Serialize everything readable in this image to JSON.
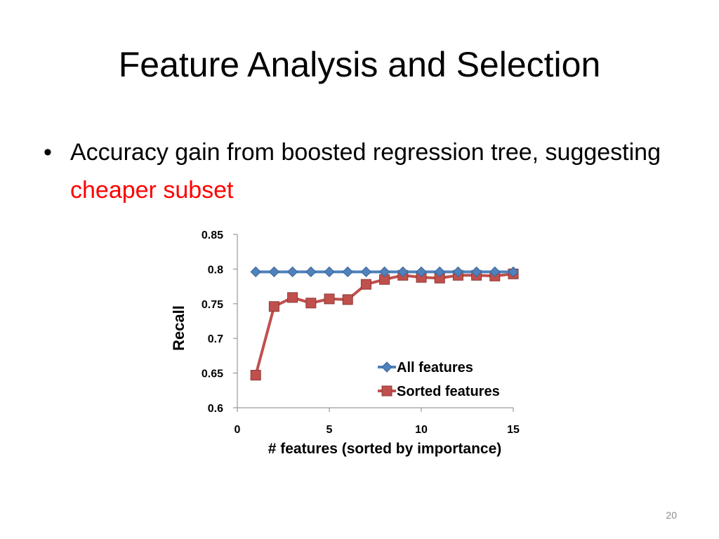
{
  "slide": {
    "title": "Feature Analysis and Selection",
    "bullet_marker": "•",
    "bullet_text": "Accuracy gain from boosted regression tree, suggesting ",
    "bullet_highlight": "cheaper subset",
    "highlight_color": "#ff0000",
    "page_number": "20"
  },
  "chart_data": {
    "type": "line",
    "xlabel": "# features (sorted by importance)",
    "ylabel": "Recall",
    "xlim": [
      0,
      15
    ],
    "ylim": [
      0.6,
      0.85
    ],
    "xticks": [
      0,
      5,
      10,
      15
    ],
    "yticks": [
      0.6,
      0.65,
      0.7,
      0.75,
      0.8,
      0.85
    ],
    "ytick_labels": [
      "0.6",
      "0.65",
      "0.7",
      "0.75",
      "0.8",
      "0.85"
    ],
    "grid": false,
    "legend_position": "right-lower",
    "series": [
      {
        "name": "All features",
        "color": "#4f81bd",
        "marker": "diamond",
        "x": [
          1,
          2,
          3,
          4,
          5,
          6,
          7,
          8,
          9,
          10,
          11,
          12,
          13,
          14,
          15
        ],
        "y": [
          0.796,
          0.796,
          0.796,
          0.796,
          0.796,
          0.796,
          0.796,
          0.796,
          0.796,
          0.796,
          0.796,
          0.796,
          0.796,
          0.796,
          0.796
        ]
      },
      {
        "name": "Sorted features",
        "color": "#c0504d",
        "marker": "square",
        "x": [
          1,
          2,
          3,
          4,
          5,
          6,
          7,
          8,
          9,
          10,
          11,
          12,
          13,
          14,
          15
        ],
        "y": [
          0.647,
          0.746,
          0.759,
          0.751,
          0.757,
          0.756,
          0.778,
          0.785,
          0.791,
          0.788,
          0.787,
          0.791,
          0.791,
          0.79,
          0.793
        ]
      }
    ]
  }
}
